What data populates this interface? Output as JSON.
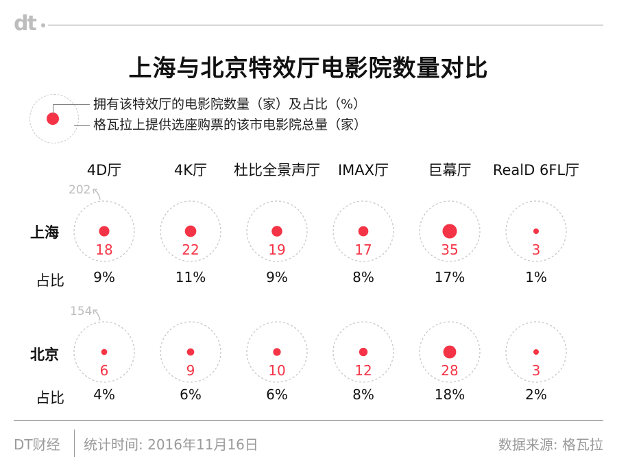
{
  "brand": {
    "logo": "dt",
    "source_name": "DT财经"
  },
  "title": "上海与北京特效厅电影院数量对比",
  "legend": {
    "inner": "拥有该特效厅的电影院数量（家）及占比（%）",
    "outer": "格瓦拉上提供选座购票的该市电影院总量（家）"
  },
  "colors": {
    "accent": "#f43446",
    "dashed": "#c7c7c7",
    "muted": "#bdbdbd"
  },
  "chart_data": {
    "type": "bubble",
    "title": "上海与北京特效厅电影院数量对比",
    "categories": [
      "4D厅",
      "4K厅",
      "杜比全景声厅",
      "IMAX厅",
      "巨幕厅",
      "RealD 6FL厅"
    ],
    "pct_row_label": "占比",
    "series": [
      {
        "name": "上海",
        "total": 202,
        "values": [
          18,
          22,
          19,
          17,
          35,
          3
        ],
        "percent": [
          "9%",
          "11%",
          "9%",
          "8%",
          "17%",
          "1%"
        ]
      },
      {
        "name": "北京",
        "total": 154,
        "values": [
          6,
          9,
          10,
          12,
          28,
          3
        ],
        "percent": [
          "4%",
          "6%",
          "6%",
          "8%",
          "18%",
          "2%"
        ]
      }
    ]
  },
  "footer": {
    "stat_time": "统计时间: 2016年11月16日",
    "data_source": "数据来源: 格瓦拉"
  }
}
